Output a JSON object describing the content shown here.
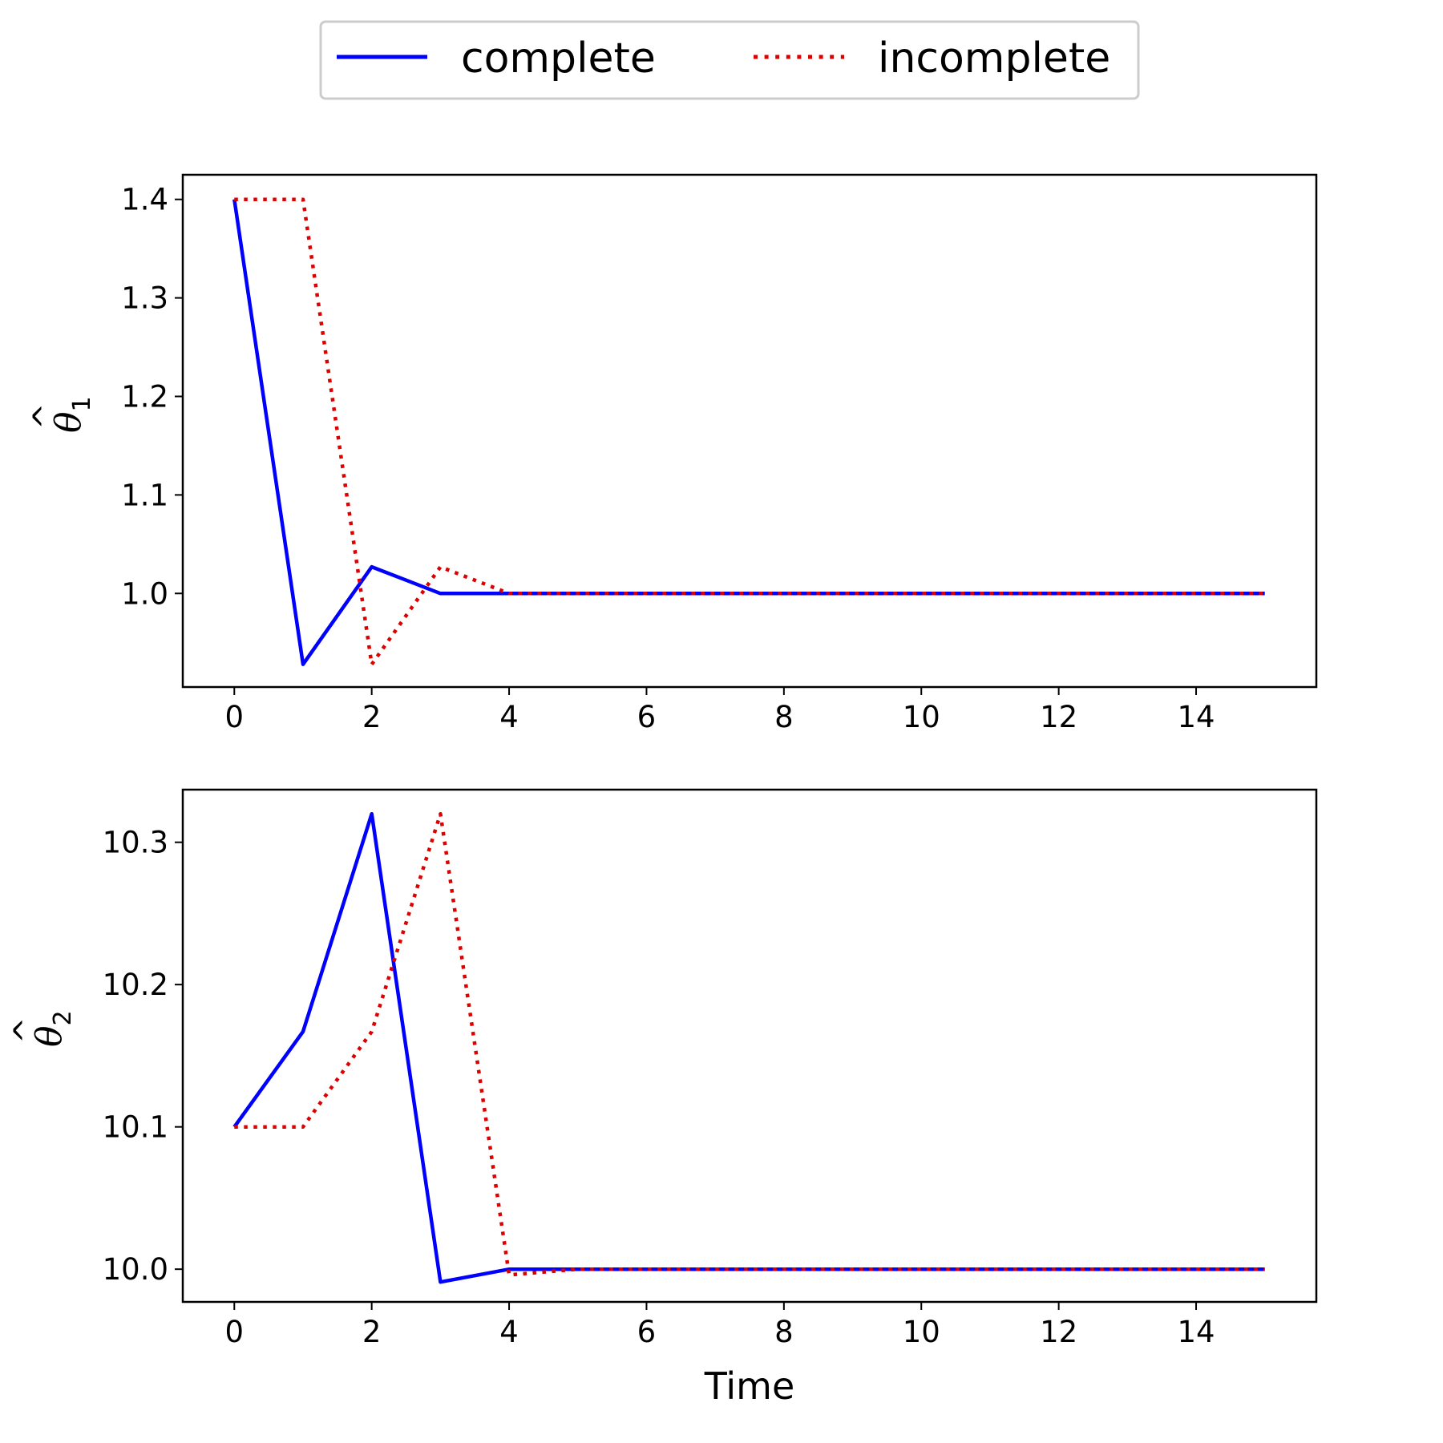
{
  "colors": {
    "complete": "#0000ff",
    "incomplete": "#dd0000"
  },
  "legend": {
    "placement": "top-center",
    "entries": [
      {
        "label": "complete",
        "style": "solid",
        "color": "#0000ff"
      },
      {
        "label": "incomplete",
        "style": "dotted",
        "color": "#dd0000"
      }
    ]
  },
  "chart_data": [
    {
      "type": "line",
      "ylabel": "θ̂1",
      "ylabel_base": "θ",
      "ylabel_sub": "1",
      "xlim": [
        -0.75,
        15.75
      ],
      "ylim": [
        0.905,
        1.425
      ],
      "xticks": [
        0,
        2,
        4,
        6,
        8,
        10,
        12,
        14
      ],
      "yticks": [
        1.0,
        1.1,
        1.2,
        1.3,
        1.4
      ],
      "ytick_labels": [
        "1.0",
        "1.1",
        "1.2",
        "1.3",
        "1.4"
      ],
      "grid": false,
      "x": [
        0,
        1,
        2,
        3,
        4,
        5,
        6,
        7,
        8,
        9,
        10,
        11,
        12,
        13,
        14,
        15
      ],
      "series": [
        {
          "name": "complete",
          "style": "solid",
          "color": "#0000ff",
          "values": [
            1.4,
            0.928,
            1.027,
            1.0,
            1.0,
            1.0,
            1.0,
            1.0,
            1.0,
            1.0,
            1.0,
            1.0,
            1.0,
            1.0,
            1.0,
            1.0
          ]
        },
        {
          "name": "incomplete",
          "style": "dotted",
          "color": "#dd0000",
          "values": [
            1.4,
            1.4,
            0.928,
            1.027,
            1.0,
            1.0,
            1.0,
            1.0,
            1.0,
            1.0,
            1.0,
            1.0,
            1.0,
            1.0,
            1.0,
            1.0
          ]
        }
      ]
    },
    {
      "type": "line",
      "ylabel": "θ̂2",
      "ylabel_base": "θ",
      "ylabel_sub": "2",
      "xlabel": "Time",
      "xlim": [
        -0.75,
        15.75
      ],
      "ylim": [
        9.977,
        10.337
      ],
      "xticks": [
        0,
        2,
        4,
        6,
        8,
        10,
        12,
        14
      ],
      "yticks": [
        10.0,
        10.1,
        10.2,
        10.3
      ],
      "ytick_labels": [
        "10.0",
        "10.1",
        "10.2",
        "10.3"
      ],
      "grid": false,
      "x": [
        0,
        1,
        2,
        3,
        4,
        5,
        6,
        7,
        8,
        9,
        10,
        11,
        12,
        13,
        14,
        15
      ],
      "series": [
        {
          "name": "complete",
          "style": "solid",
          "color": "#0000ff",
          "values": [
            10.1,
            10.167,
            10.32,
            9.991,
            10.0,
            10.0,
            10.0,
            10.0,
            10.0,
            10.0,
            10.0,
            10.0,
            10.0,
            10.0,
            10.0,
            10.0
          ]
        },
        {
          "name": "incomplete",
          "style": "dotted",
          "color": "#dd0000",
          "values": [
            10.1,
            10.1,
            10.167,
            10.32,
            9.996,
            10.0,
            10.0,
            10.0,
            10.0,
            10.0,
            10.0,
            10.0,
            10.0,
            10.0,
            10.0,
            10.0
          ]
        }
      ]
    }
  ]
}
